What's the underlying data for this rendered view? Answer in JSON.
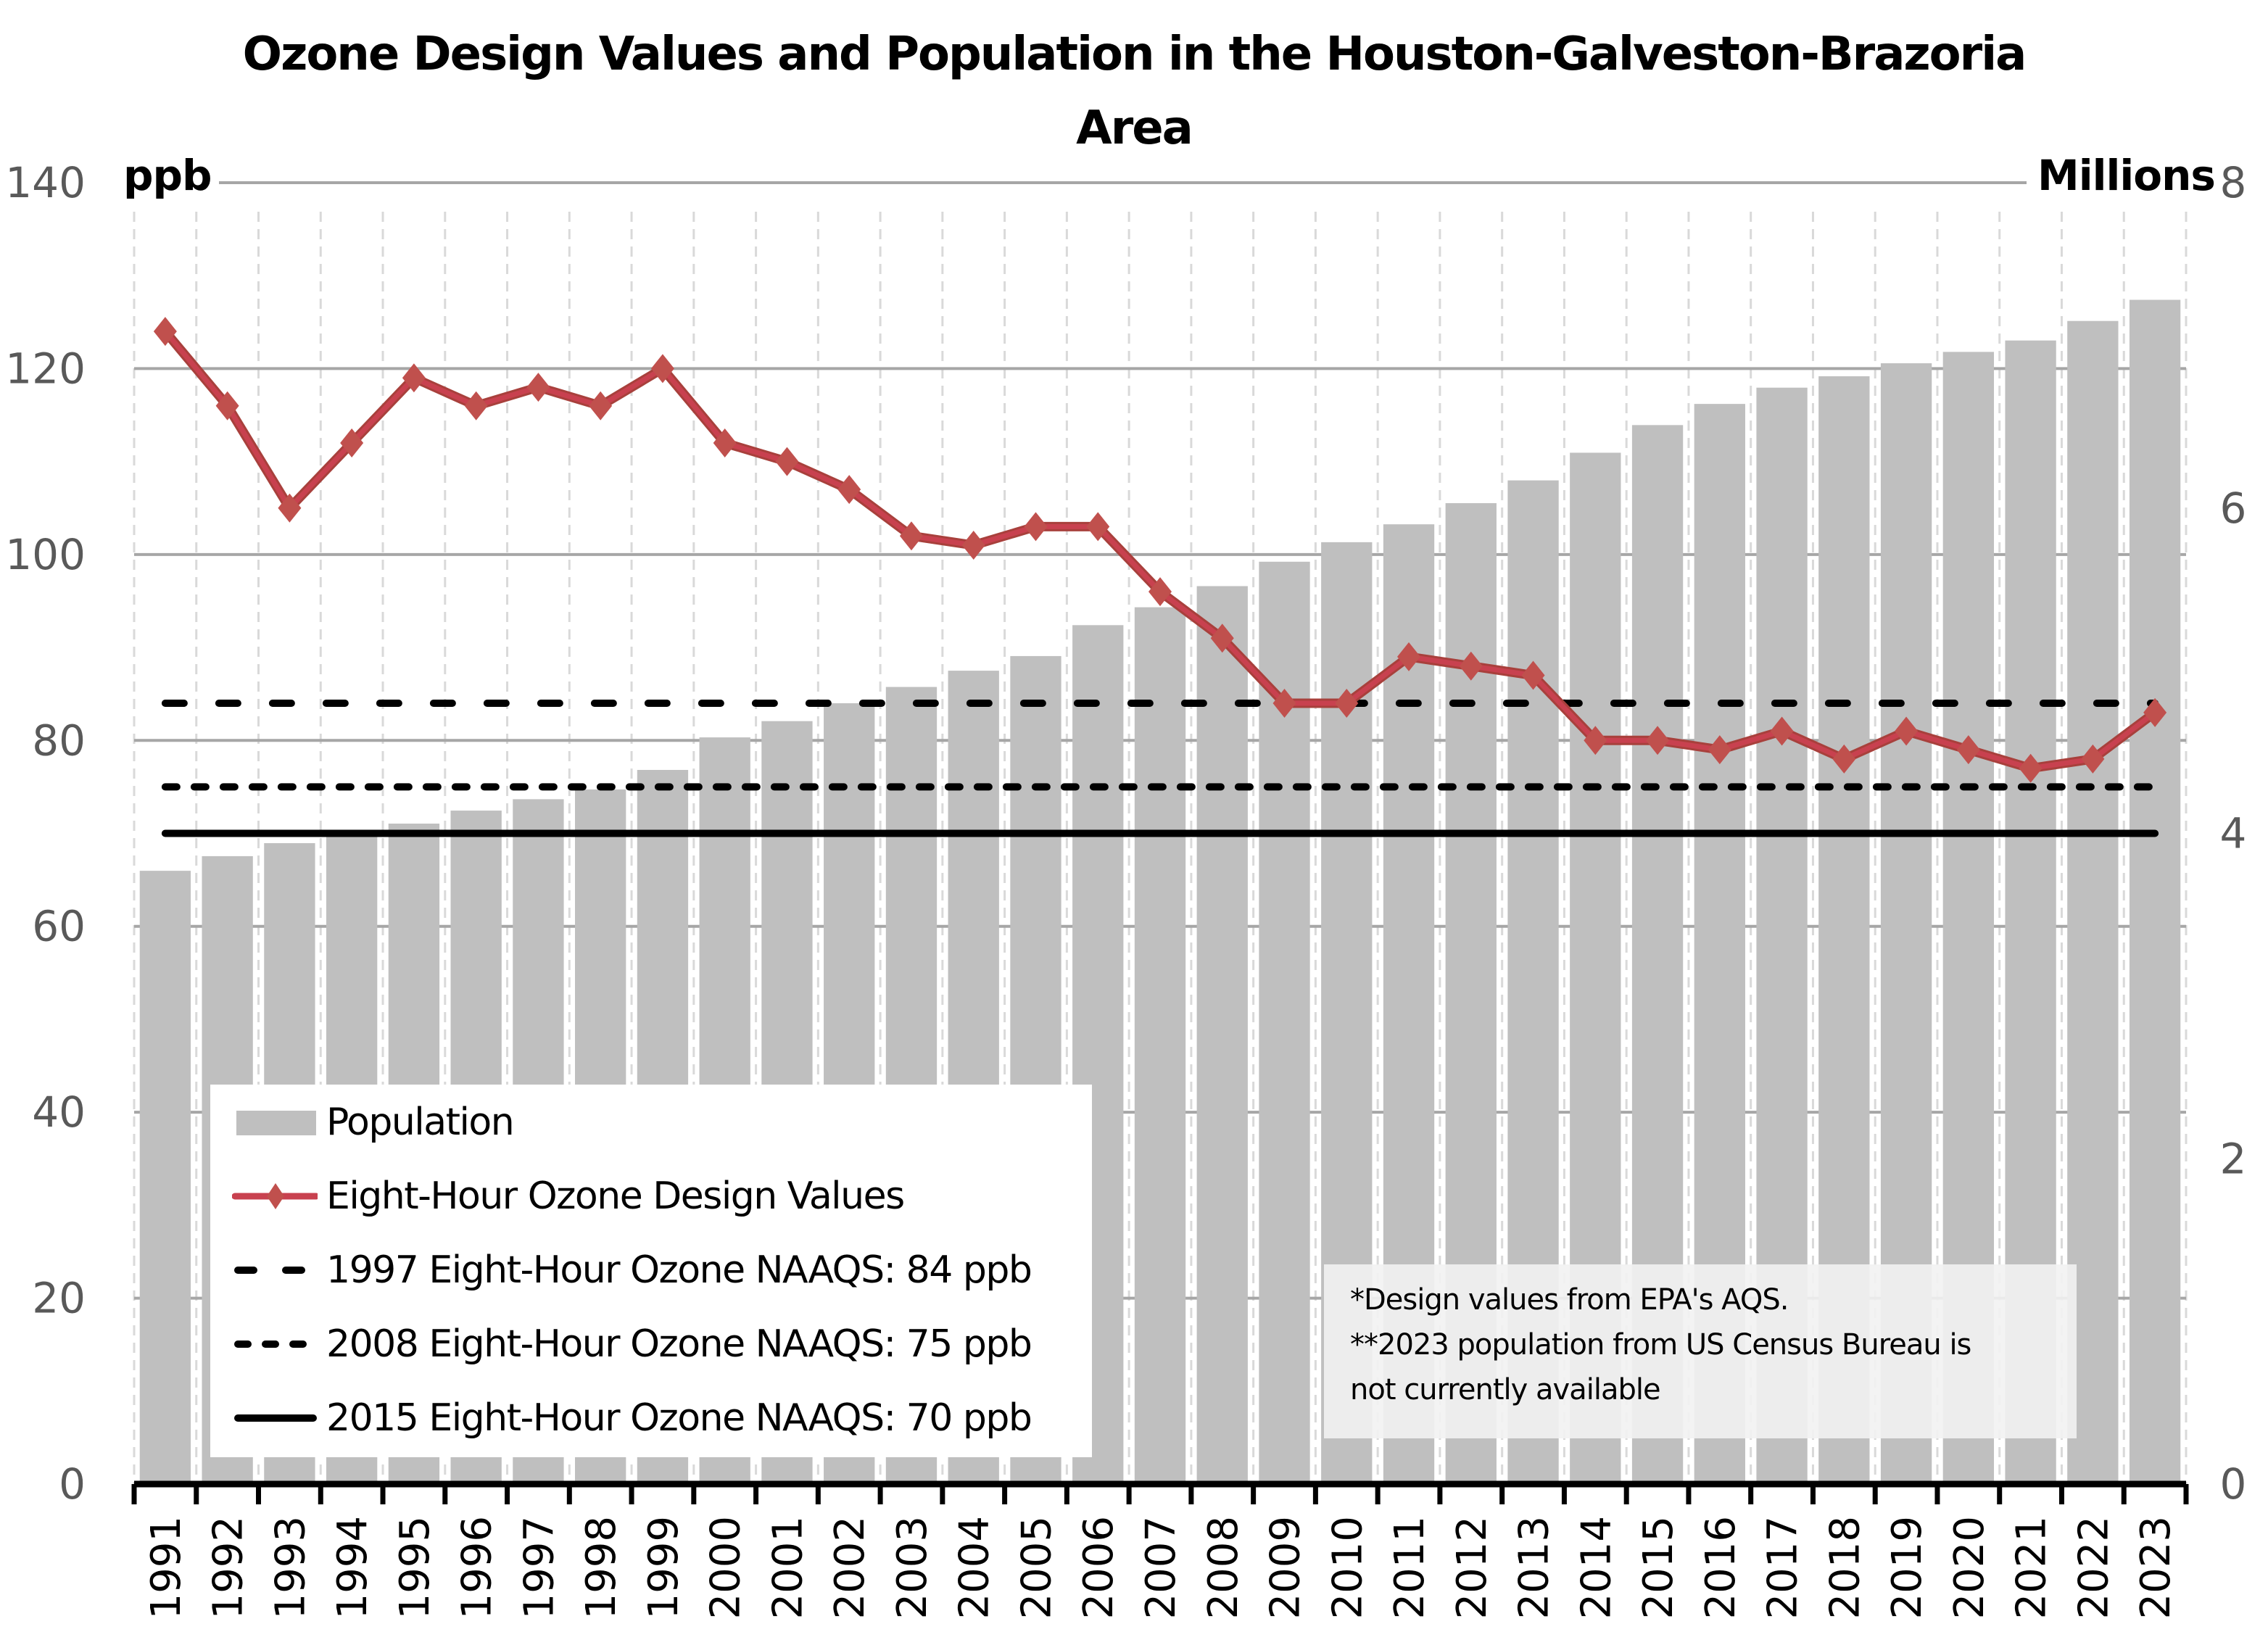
{
  "title_line1": "Ozone Design Values and Population in the Houston-Galveston-Brazoria",
  "title_line2": "Area",
  "left_axis_unit": "ppb",
  "right_axis_unit": "Millions",
  "legend": {
    "population": "Population",
    "ozone": "Eight-Hour Ozone Design Values",
    "naaqs_1997": "1997 Eight-Hour Ozone NAAQS: 84 ppb",
    "naaqs_2008": "2008 Eight-Hour Ozone NAAQS: 75 ppb",
    "naaqs_2015": "2015 Eight-Hour Ozone NAAQS: 70 ppb"
  },
  "notes": [
    "*Design values from EPA's AQS.",
    "**2023 population from US Census Bureau is",
    "not currently available"
  ],
  "colors": {
    "bar": "#BFBFBF",
    "line": "#C8414F",
    "marker": "#C0504D",
    "standard": "#000000",
    "grid": "#A6A6A6",
    "axis_text": "#595959"
  },
  "chart_data": {
    "type": "bar+line",
    "title": "Ozone Design Values and Population in the Houston-Galveston-Brazoria Area",
    "xlabel": "",
    "ylabel": "ppb",
    "y2label": "Millions",
    "ylim": [
      0,
      140
    ],
    "y2lim": [
      0,
      8
    ],
    "yticks": [
      "0",
      "20",
      "40",
      "60",
      "80",
      "100",
      "120",
      "140"
    ],
    "y2ticks": [
      "0",
      "2",
      "4",
      "6",
      "8"
    ],
    "grid": true,
    "legend_position": "bottom-left",
    "categories": [
      "1991",
      "1992",
      "1993",
      "1994",
      "1995",
      "1996",
      "1997",
      "1998",
      "1999",
      "2000",
      "2001",
      "2002",
      "2003",
      "2004",
      "2005",
      "2006",
      "2007",
      "2008",
      "2009",
      "2010",
      "2011",
      "2012",
      "2013",
      "2014",
      "2015",
      "2016",
      "2017",
      "2018",
      "2019",
      "2020",
      "2021",
      "2022",
      "2023"
    ],
    "series": [
      {
        "name": "Population",
        "type": "bar",
        "axis": "right",
        "unit": "Millions",
        "values": [
          3.77,
          3.86,
          3.94,
          3.98,
          4.06,
          4.14,
          4.21,
          4.27,
          4.39,
          4.59,
          4.69,
          4.8,
          4.9,
          5.0,
          5.09,
          5.28,
          5.39,
          5.52,
          5.67,
          5.79,
          5.9,
          6.03,
          6.17,
          6.34,
          6.51,
          6.64,
          6.74,
          6.81,
          6.89,
          6.96,
          7.03,
          7.15,
          7.28
        ]
      },
      {
        "name": "Eight-Hour Ozone Design Values",
        "type": "line",
        "axis": "left",
        "unit": "ppb",
        "marker": "diamond",
        "values": [
          124,
          116,
          105,
          112,
          119,
          116,
          118,
          116,
          120,
          112,
          110,
          107,
          102,
          101,
          103,
          103,
          96,
          91,
          84,
          84,
          89,
          88,
          87,
          80,
          80,
          79,
          81,
          78,
          81,
          79,
          77,
          78,
          83
        ]
      },
      {
        "name": "1997 Eight-Hour Ozone NAAQS: 84 ppb",
        "type": "hline",
        "style": "long-dash",
        "axis": "left",
        "value": 84
      },
      {
        "name": "2008 Eight-Hour Ozone NAAQS: 75 ppb",
        "type": "hline",
        "style": "short-dash",
        "axis": "left",
        "value": 75
      },
      {
        "name": "2015 Eight-Hour Ozone NAAQS: 70 ppb",
        "type": "hline",
        "style": "solid",
        "axis": "left",
        "value": 70
      }
    ],
    "annotations": [
      "*Design values from EPA's AQS.",
      "**2023 population from US Census Bureau is not currently available"
    ]
  }
}
